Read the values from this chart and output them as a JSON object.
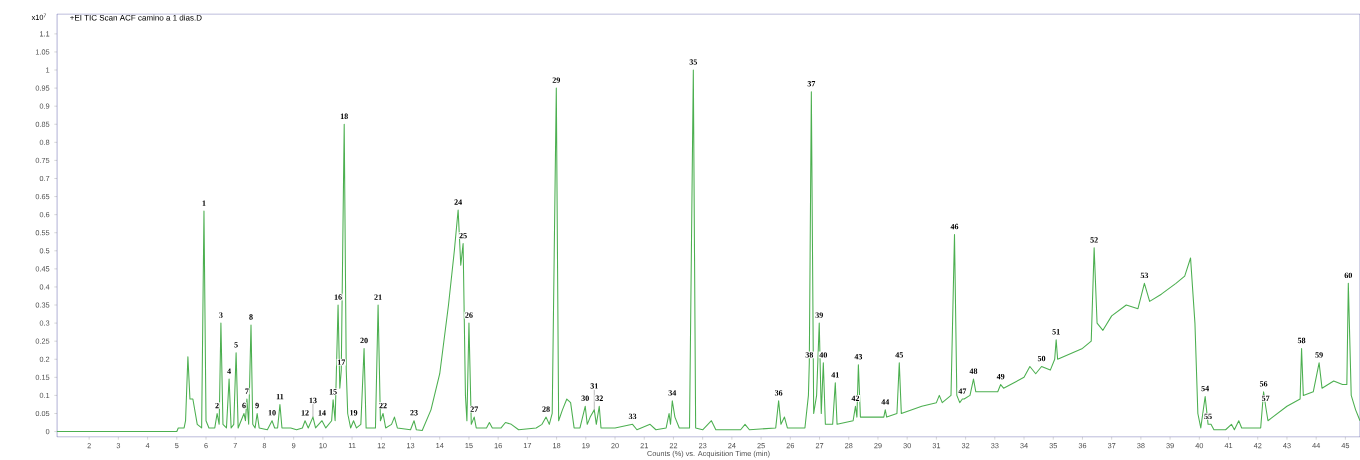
{
  "chart_data": {
    "type": "line",
    "title": "+EI TIC Scan ACF camino a 1 dias.D",
    "xlabel": "Counts (%) vs. Acquisition Time (min)",
    "ylabel": "x10$^{7}$",
    "color": "#4caf50",
    "x": [
      0.9,
      5.0,
      5.05,
      5.25,
      5.3,
      5.38,
      5.45,
      5.55,
      5.7,
      5.85,
      5.93,
      6.0,
      6.1,
      6.3,
      6.38,
      6.45,
      6.51,
      6.58,
      6.7,
      6.79,
      6.86,
      6.95,
      7.03,
      7.1,
      7.2,
      7.3,
      7.35,
      7.4,
      7.46,
      7.54,
      7.6,
      7.68,
      7.75,
      7.82,
      8.1,
      8.26,
      8.35,
      8.45,
      8.53,
      8.6,
      8.9,
      9.1,
      9.3,
      9.39,
      9.5,
      9.66,
      9.75,
      9.97,
      10.1,
      10.3,
      10.35,
      10.42,
      10.52,
      10.58,
      10.63,
      10.73,
      10.8,
      10.85,
      10.95,
      11.05,
      11.15,
      11.3,
      11.41,
      11.48,
      11.8,
      11.89,
      11.97,
      12.06,
      12.15,
      12.35,
      12.45,
      12.55,
      13.0,
      13.12,
      13.2,
      13.4,
      13.7,
      14.0,
      14.3,
      14.5,
      14.63,
      14.72,
      14.8,
      14.88,
      14.93,
      15.0,
      15.08,
      15.18,
      15.25,
      15.6,
      15.7,
      15.8,
      16.1,
      16.25,
      16.45,
      16.7,
      17.3,
      17.5,
      17.64,
      17.75,
      17.85,
      17.99,
      18.07,
      18.2,
      18.35,
      18.48,
      18.6,
      18.8,
      18.98,
      19.05,
      19.15,
      19.29,
      19.36,
      19.46,
      19.52,
      20.0,
      20.6,
      20.75,
      21.2,
      21.4,
      21.75,
      21.85,
      21.9,
      21.96,
      22.05,
      22.2,
      22.55,
      22.68,
      22.76,
      23.0,
      23.3,
      23.45,
      24.3,
      24.45,
      24.6,
      25.5,
      25.6,
      25.68,
      25.8,
      25.9,
      26.5,
      26.62,
      26.65,
      26.72,
      26.8,
      26.9,
      26.99,
      27.06,
      27.13,
      27.2,
      27.45,
      27.54,
      27.6,
      28.15,
      28.23,
      28.28,
      28.33,
      28.4,
      29.2,
      29.25,
      29.3,
      29.65,
      29.73,
      29.8,
      30.5,
      31.0,
      31.1,
      31.2,
      31.5,
      31.62,
      31.7,
      31.8,
      31.89,
      31.95,
      32.15,
      32.27,
      32.35,
      33.1,
      33.2,
      33.3,
      34.0,
      34.2,
      34.4,
      34.6,
      34.9,
      35.05,
      35.1,
      35.15,
      36.0,
      36.3,
      36.4,
      36.5,
      36.7,
      37.0,
      37.5,
      37.9,
      38.12,
      38.3,
      38.7,
      39.2,
      39.5,
      39.7,
      39.85,
      39.95,
      40.05,
      40.2,
      40.3,
      40.4,
      40.5,
      40.9,
      41.1,
      41.2,
      41.35,
      41.45,
      42.1,
      42.2,
      42.27,
      42.35,
      43.0,
      43.45,
      43.5,
      43.56,
      43.9,
      44.1,
      44.2,
      44.6,
      44.9,
      45.05,
      45.1,
      45.2,
      45.35,
      45.5
    ],
    "values": [
      0,
      0,
      0.01,
      0.01,
      0.03,
      0.207,
      0.09,
      0.09,
      0.02,
      0.01,
      0.61,
      0.03,
      0.01,
      0.01,
      0.05,
      0.02,
      0.3,
      0.02,
      0.01,
      0.145,
      0.01,
      0.02,
      0.218,
      0.01,
      0.03,
      0.05,
      0.03,
      0.09,
      0.02,
      0.295,
      0.02,
      0.01,
      0.05,
      0.01,
      0.005,
      0.03,
      0.01,
      0.01,
      0.075,
      0.01,
      0.01,
      0.005,
      0.01,
      0.03,
      0.01,
      0.04,
      0.01,
      0.03,
      0.01,
      0.03,
      0.088,
      0.03,
      0.35,
      0.12,
      0.17,
      0.85,
      0.17,
      0.05,
      0.01,
      0.03,
      0.01,
      0.02,
      0.23,
      0.01,
      0.01,
      0.35,
      0.03,
      0.05,
      0.01,
      0.02,
      0.04,
      0.01,
      0.005,
      0.03,
      0.005,
      0.003,
      0.06,
      0.16,
      0.35,
      0.5,
      0.613,
      0.46,
      0.52,
      0.1,
      0.03,
      0.3,
      0.02,
      0.04,
      0.01,
      0.01,
      0.025,
      0.01,
      0.01,
      0.025,
      0.02,
      0.005,
      0.01,
      0.02,
      0.04,
      0.02,
      0.05,
      0.95,
      0.03,
      0.06,
      0.09,
      0.08,
      0.01,
      0.01,
      0.07,
      0.02,
      0.04,
      0.06,
      0.02,
      0.07,
      0.01,
      0.01,
      0.02,
      0.005,
      0.02,
      0.005,
      0.01,
      0.05,
      0.02,
      0.085,
      0.04,
      0.01,
      0.01,
      1.0,
      0.01,
      0.005,
      0.03,
      0.005,
      0.005,
      0.02,
      0.005,
      0.01,
      0.085,
      0.02,
      0.04,
      0.01,
      0.01,
      0.1,
      0.19,
      0.94,
      0.05,
      0.1,
      0.3,
      0.05,
      0.19,
      0.02,
      0.02,
      0.135,
      0.02,
      0.03,
      0.07,
      0.04,
      0.185,
      0.04,
      0.04,
      0.06,
      0.04,
      0.05,
      0.19,
      0.05,
      0.07,
      0.08,
      0.1,
      0.08,
      0.1,
      0.545,
      0.1,
      0.08,
      0.09,
      0.09,
      0.1,
      0.145,
      0.11,
      0.11,
      0.13,
      0.12,
      0.15,
      0.18,
      0.16,
      0.18,
      0.17,
      0.2,
      0.254,
      0.2,
      0.23,
      0.25,
      0.508,
      0.3,
      0.28,
      0.32,
      0.35,
      0.34,
      0.41,
      0.36,
      0.38,
      0.41,
      0.43,
      0.48,
      0.3,
      0.05,
      0.01,
      0.097,
      0.02,
      0.02,
      0.005,
      0.005,
      0.02,
      0.005,
      0.03,
      0.01,
      0.01,
      0.11,
      0.07,
      0.03,
      0.07,
      0.09,
      0.23,
      0.1,
      0.11,
      0.19,
      0.12,
      0.14,
      0.13,
      0.13,
      0.41,
      0.1,
      0.06,
      0.03
    ],
    "xlim": [
      0.9,
      45.5
    ],
    "ylim": [
      -0.015,
      1.155
    ],
    "xticks": [
      2,
      3,
      4,
      5,
      6,
      7,
      8,
      9,
      10,
      11,
      12,
      13,
      14,
      15,
      16,
      17,
      18,
      19,
      20,
      21,
      22,
      23,
      24,
      25,
      26,
      27,
      28,
      29,
      30,
      31,
      32,
      33,
      34,
      35,
      36,
      37,
      38,
      39,
      40,
      41,
      42,
      43,
      44,
      45
    ],
    "yticks": [
      0,
      0.05,
      0.1,
      0.15,
      0.2,
      0.25,
      0.3,
      0.35,
      0.4,
      0.45,
      0.5,
      0.55,
      0.6,
      0.65,
      0.7,
      0.75,
      0.8,
      0.85,
      0.9,
      0.95,
      1,
      1.05,
      1.1
    ],
    "annotations": [
      {
        "text": "1",
        "x": 5.93,
        "y": 0.61
      },
      {
        "text": "2",
        "x": 6.38,
        "y": 0.05
      },
      {
        "text": "3",
        "x": 6.51,
        "y": 0.3
      },
      {
        "text": "4",
        "x": 6.79,
        "y": 0.145
      },
      {
        "text": "5",
        "x": 7.03,
        "y": 0.218
      },
      {
        "text": "6",
        "x": 7.3,
        "y": 0.05
      },
      {
        "text": "7",
        "x": 7.4,
        "y": 0.09
      },
      {
        "text": "8",
        "x": 7.54,
        "y": 0.295
      },
      {
        "text": "9",
        "x": 7.75,
        "y": 0.05
      },
      {
        "text": "10",
        "x": 8.26,
        "y": 0.03
      },
      {
        "text": "11",
        "x": 8.53,
        "y": 0.075
      },
      {
        "text": "12",
        "x": 9.39,
        "y": 0.03
      },
      {
        "text": "13",
        "x": 9.66,
        "y": 0.04
      },
      {
        "text": "14",
        "x": 9.97,
        "y": 0.03
      },
      {
        "text": "15",
        "x": 10.35,
        "y": 0.088
      },
      {
        "text": "16",
        "x": 10.52,
        "y": 0.35
      },
      {
        "text": "17",
        "x": 10.63,
        "y": 0.17
      },
      {
        "text": "18",
        "x": 10.73,
        "y": 0.85
      },
      {
        "text": "19",
        "x": 11.05,
        "y": 0.03
      },
      {
        "text": "20",
        "x": 11.41,
        "y": 0.23
      },
      {
        "text": "21",
        "x": 11.89,
        "y": 0.35
      },
      {
        "text": "22",
        "x": 12.06,
        "y": 0.05
      },
      {
        "text": "23",
        "x": 13.12,
        "y": 0.03
      },
      {
        "text": "24",
        "x": 14.63,
        "y": 0.613
      },
      {
        "text": "25",
        "x": 14.8,
        "y": 0.52
      },
      {
        "text": "26",
        "x": 15.0,
        "y": 0.3
      },
      {
        "text": "27",
        "x": 15.18,
        "y": 0.04
      },
      {
        "text": "28",
        "x": 17.64,
        "y": 0.04
      },
      {
        "text": "29",
        "x": 17.99,
        "y": 0.95
      },
      {
        "text": "30",
        "x": 18.98,
        "y": 0.07
      },
      {
        "text": "31",
        "x": 19.29,
        "y": 0.06
      },
      {
        "text": "32",
        "x": 19.46,
        "y": 0.07
      },
      {
        "text": "33",
        "x": 20.6,
        "y": 0.02
      },
      {
        "text": "34",
        "x": 21.96,
        "y": 0.085
      },
      {
        "text": "35",
        "x": 22.68,
        "y": 1.0
      },
      {
        "text": "36",
        "x": 25.6,
        "y": 0.085
      },
      {
        "text": "37",
        "x": 26.72,
        "y": 0.94
      },
      {
        "text": "38",
        "x": 26.65,
        "y": 0.19
      },
      {
        "text": "39",
        "x": 26.99,
        "y": 0.3
      },
      {
        "text": "40",
        "x": 27.13,
        "y": 0.19
      },
      {
        "text": "41",
        "x": 27.54,
        "y": 0.135
      },
      {
        "text": "42",
        "x": 28.23,
        "y": 0.07
      },
      {
        "text": "43",
        "x": 28.33,
        "y": 0.185
      },
      {
        "text": "44",
        "x": 29.25,
        "y": 0.06
      },
      {
        "text": "45",
        "x": 29.73,
        "y": 0.19
      },
      {
        "text": "46",
        "x": 31.62,
        "y": 0.545
      },
      {
        "text": "47",
        "x": 31.89,
        "y": 0.09
      },
      {
        "text": "48",
        "x": 32.27,
        "y": 0.145
      },
      {
        "text": "49",
        "x": 33.2,
        "y": 0.13
      },
      {
        "text": "50",
        "x": 34.6,
        "y": 0.18
      },
      {
        "text": "51",
        "x": 35.1,
        "y": 0.254
      },
      {
        "text": "52",
        "x": 36.4,
        "y": 0.508
      },
      {
        "text": "53",
        "x": 38.12,
        "y": 0.41
      },
      {
        "text": "54",
        "x": 40.2,
        "y": 0.097
      },
      {
        "text": "55",
        "x": 40.3,
        "y": 0.02
      },
      {
        "text": "56",
        "x": 42.2,
        "y": 0.11
      },
      {
        "text": "57",
        "x": 42.27,
        "y": 0.07
      },
      {
        "text": "58",
        "x": 43.5,
        "y": 0.23
      },
      {
        "text": "59",
        "x": 44.1,
        "y": 0.19
      },
      {
        "text": "60",
        "x": 45.1,
        "y": 0.41
      }
    ]
  }
}
